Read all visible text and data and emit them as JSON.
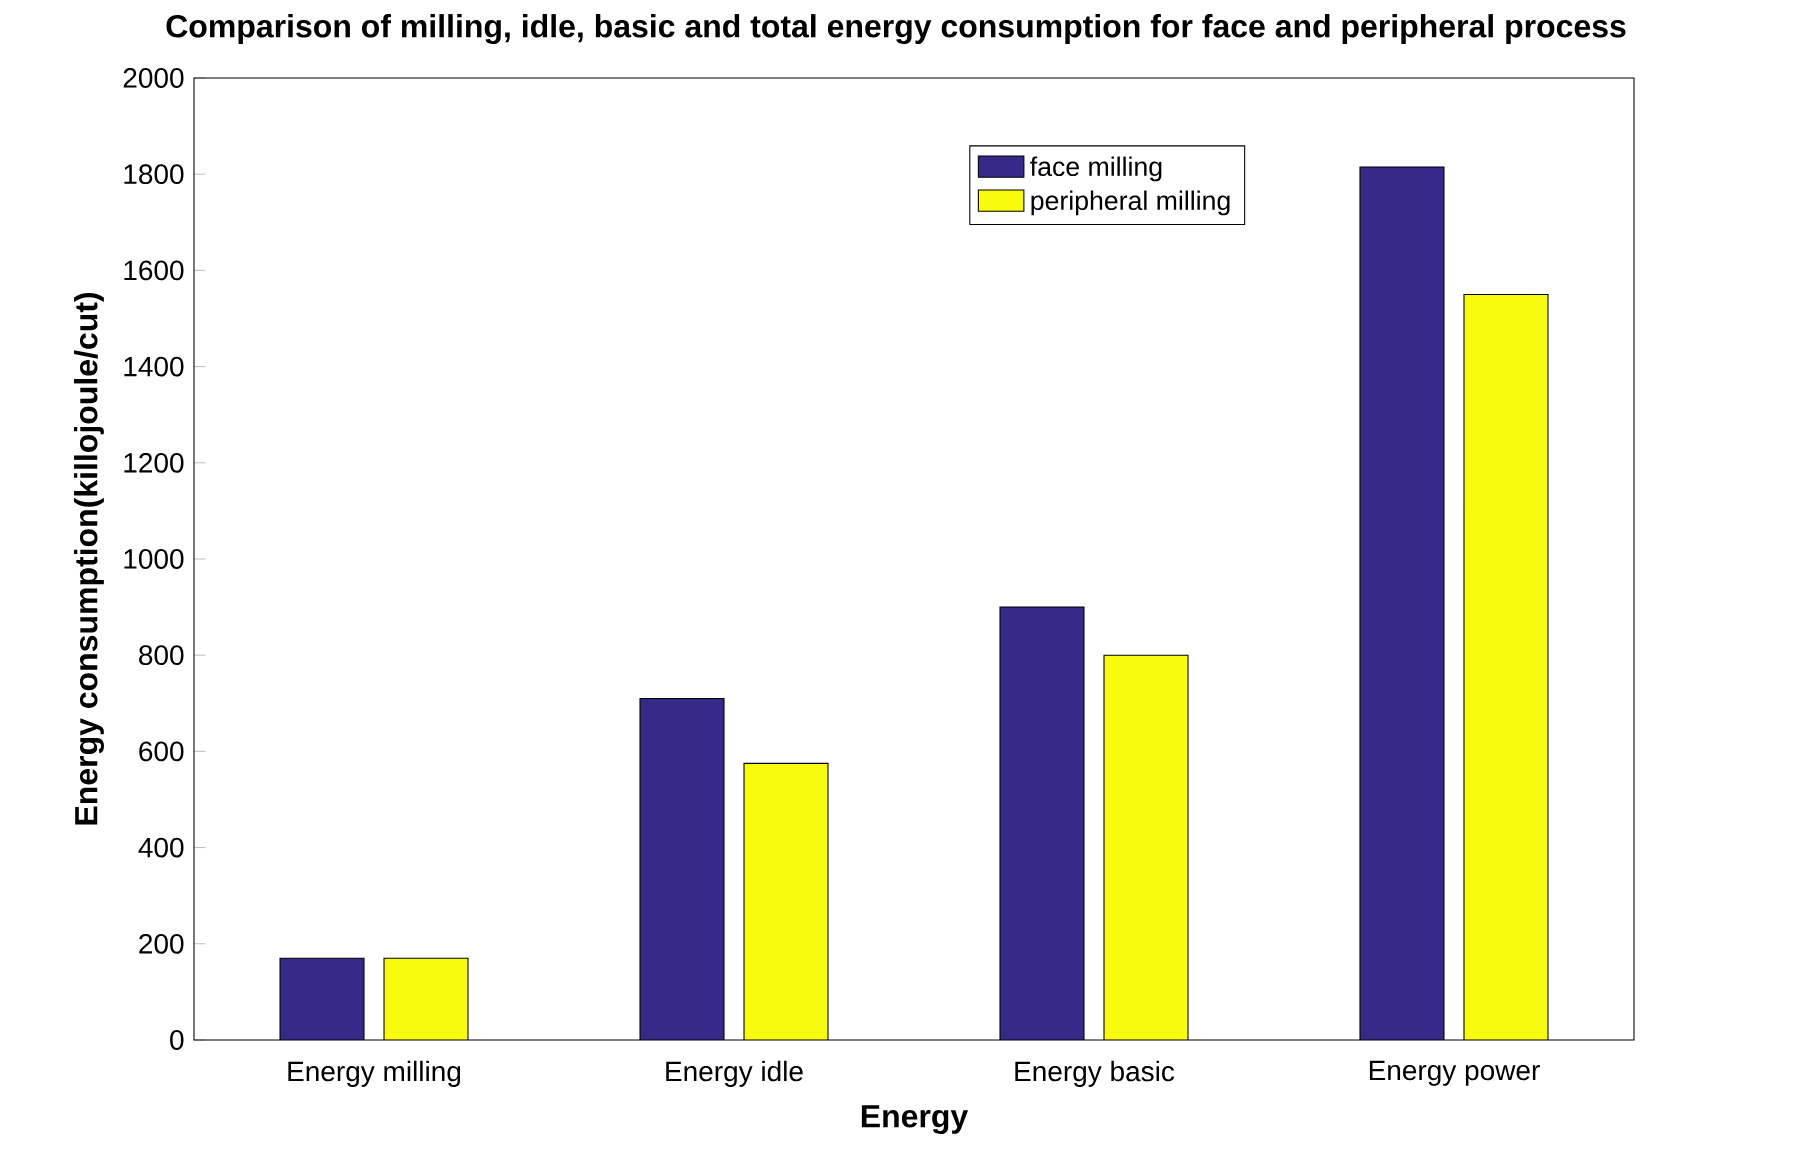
{
  "chart_data": {
    "type": "bar",
    "title": "Comparison of milling, idle, basic and total energy consumption for face and peripheral process",
    "xlabel": "Energy",
    "ylabel": "Energy consumption(killojoule/cut)",
    "categories": [
      "Energy milling",
      "Energy idle",
      "Energy basic",
      "Energy power"
    ],
    "series": [
      {
        "name": "face milling",
        "color": "#352a87",
        "values": [
          170,
          710,
          900,
          1815
        ]
      },
      {
        "name": "peripheral milling",
        "color": "#f9fb0e",
        "values": [
          170,
          575,
          800,
          1550
        ]
      }
    ],
    "ylim": [
      0,
      2000
    ],
    "yticks": [
      0,
      200,
      400,
      600,
      800,
      1000,
      1200,
      1400,
      1600,
      1800,
      2000
    ],
    "grid": false,
    "legend": "top right"
  }
}
